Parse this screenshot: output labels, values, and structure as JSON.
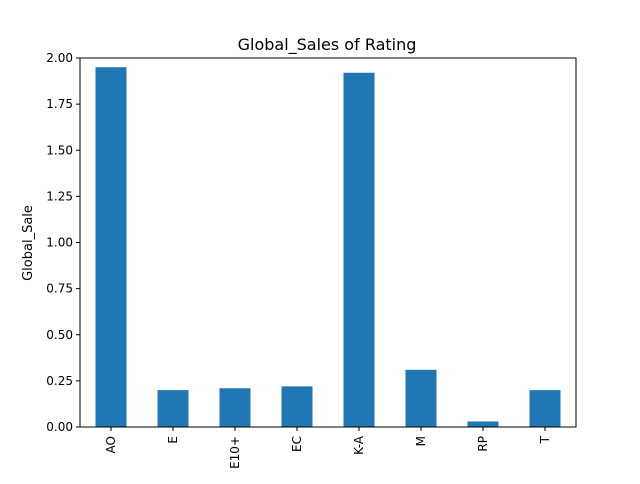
{
  "chart_data": {
    "type": "bar",
    "title": "Global_Sales of Rating",
    "xlabel": "",
    "ylabel": "Global_Sale",
    "categories": [
      "AO",
      "E",
      "E10+",
      "EC",
      "K-A",
      "M",
      "RP",
      "T"
    ],
    "values": [
      1.95,
      0.2,
      0.21,
      0.22,
      1.92,
      0.31,
      0.03,
      0.2
    ],
    "ylim": [
      0,
      2.0
    ],
    "yticks": [
      "0.00",
      "0.25",
      "0.50",
      "0.75",
      "1.00",
      "1.25",
      "1.50",
      "1.75",
      "2.00"
    ],
    "ytick_values": [
      0,
      0.25,
      0.5,
      0.75,
      1.0,
      1.25,
      1.5,
      1.75,
      2.0
    ],
    "colors": {
      "bar": "#1f77b4",
      "axis": "#000000",
      "background": "#ffffff"
    },
    "grid": false,
    "legend": "none"
  }
}
